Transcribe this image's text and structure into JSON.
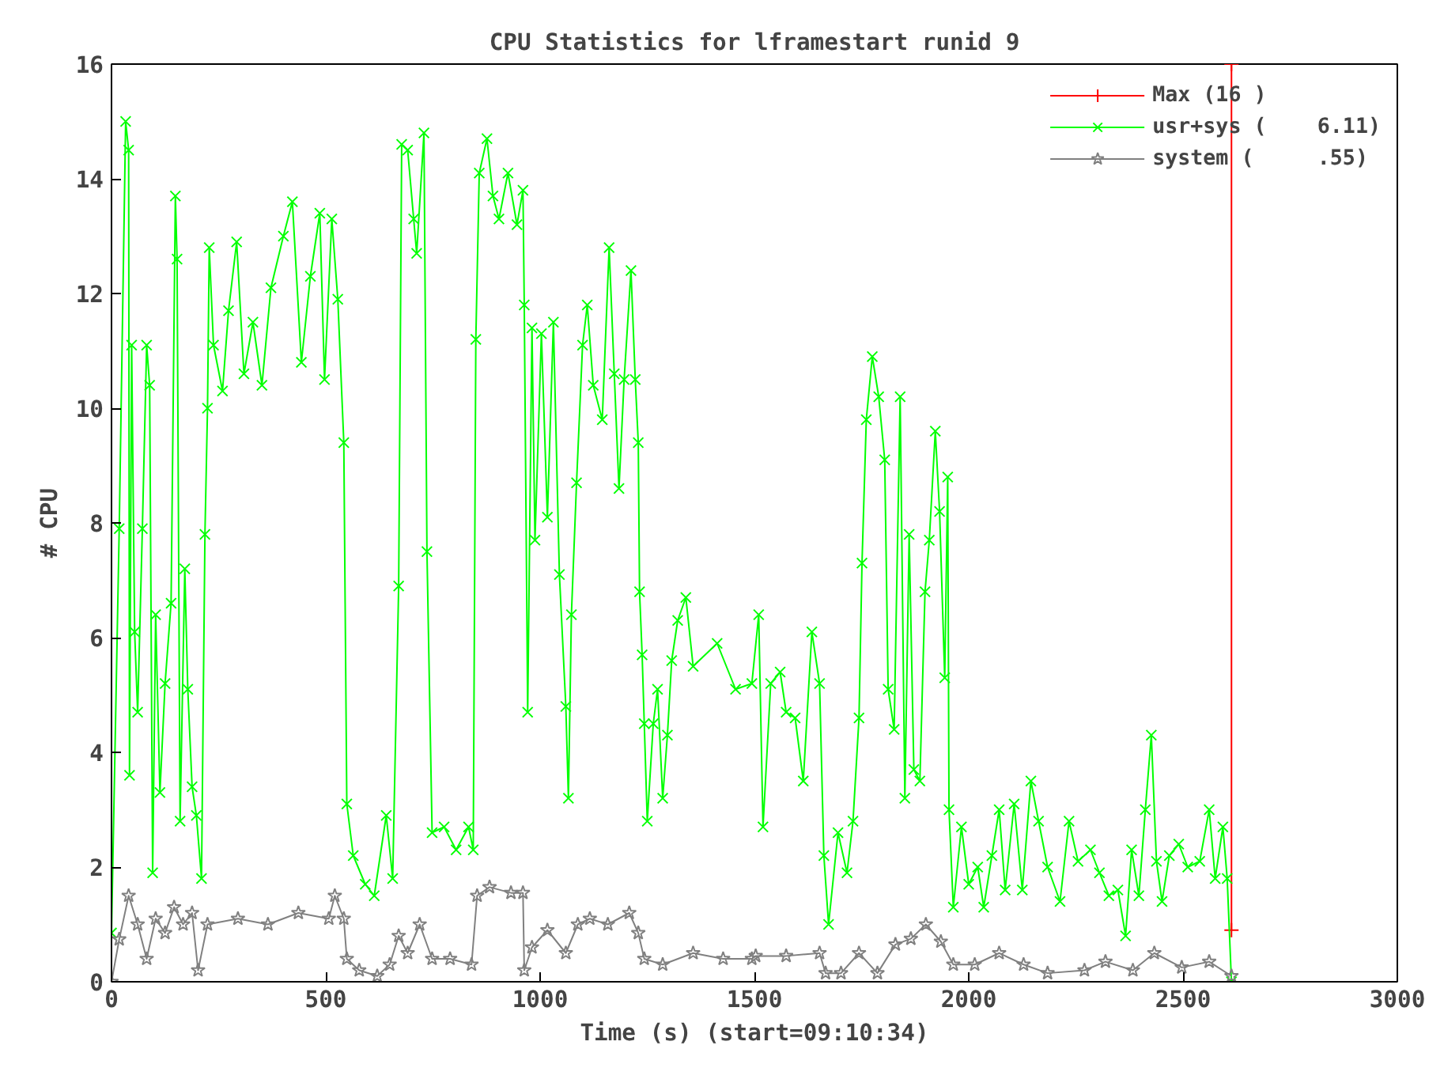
{
  "chart_data": {
    "type": "line",
    "title": "CPU Statistics for lframestart runid 9",
    "xlabel": "Time (s) (start=09:10:34)",
    "ylabel": "# CPU",
    "xlim": [
      0,
      3000
    ],
    "xticks": [
      0,
      500,
      1000,
      1500,
      2000,
      2500,
      3000
    ],
    "ylim": [
      0,
      16
    ],
    "yticks": [
      0,
      2,
      4,
      6,
      8,
      10,
      12,
      14,
      16
    ],
    "grid": false,
    "legend": "top right",
    "line_style": "solid",
    "series": [
      {
        "name": "Max (16 )",
        "color": "#ff0000",
        "marker": "cross",
        "x": [
          2613,
          2613
        ],
        "values": [
          16,
          0.9
        ]
      },
      {
        "name": "usr+sys (    6.11)",
        "color": "#00ff00",
        "marker": "x",
        "x": [
          0,
          18,
          33,
          40,
          42,
          47,
          54,
          61,
          72,
          82,
          89,
          96,
          103,
          113,
          125,
          139,
          149,
          153,
          160,
          171,
          178,
          188,
          198,
          210,
          218,
          224,
          228,
          238,
          259,
          273,
          292,
          309,
          330,
          351,
          372,
          401,
          422,
          443,
          464,
          486,
          497,
          514,
          528,
          542,
          549,
          564,
          592,
          613,
          641,
          656,
          670,
          677,
          691,
          705,
          712,
          729,
          736,
          748,
          776,
          804,
          833,
          844,
          850,
          858,
          876,
          890,
          904,
          925,
          946,
          960,
          963,
          971,
          981,
          988,
          1003,
          1017,
          1031,
          1045,
          1060,
          1066,
          1073,
          1085,
          1099,
          1110,
          1124,
          1145,
          1161,
          1173,
          1184,
          1196,
          1212,
          1222,
          1229,
          1232,
          1238,
          1243,
          1250,
          1264,
          1274,
          1286,
          1297,
          1307,
          1321,
          1340,
          1357,
          1413,
          1456,
          1494,
          1510,
          1520,
          1538,
          1560,
          1574,
          1595,
          1614,
          1634,
          1652,
          1662,
          1673,
          1695,
          1716,
          1730,
          1744,
          1751,
          1761,
          1775,
          1790,
          1804,
          1812,
          1826,
          1840,
          1851,
          1861,
          1872,
          1886,
          1898,
          1908,
          1922,
          1932,
          1944,
          1951,
          1954,
          1964,
          1983,
          2000,
          2021,
          2035,
          2054,
          2071,
          2085,
          2106,
          2125,
          2145,
          2163,
          2184,
          2213,
          2234,
          2255,
          2284,
          2305,
          2327,
          2348,
          2366,
          2380,
          2397,
          2412,
          2426,
          2438,
          2451,
          2468,
          2490,
          2511,
          2539,
          2561,
          2575,
          2593,
          2603,
          2613
        ],
        "values": [
          0.85,
          7.9,
          15.0,
          14.5,
          3.6,
          11.1,
          6.1,
          4.7,
          7.9,
          11.1,
          10.4,
          1.9,
          6.4,
          3.3,
          5.2,
          6.6,
          13.7,
          12.6,
          2.8,
          7.2,
          5.1,
          3.4,
          2.9,
          1.8,
          7.8,
          10.0,
          12.8,
          11.1,
          10.3,
          11.7,
          12.9,
          10.6,
          11.5,
          10.4,
          12.1,
          13.0,
          13.6,
          10.8,
          12.3,
          13.4,
          10.5,
          13.3,
          11.9,
          9.4,
          3.1,
          2.2,
          1.7,
          1.5,
          2.9,
          1.8,
          6.9,
          14.6,
          14.5,
          13.3,
          12.7,
          14.8,
          7.5,
          2.6,
          2.7,
          2.3,
          2.7,
          2.3,
          11.2,
          14.1,
          14.7,
          13.7,
          13.3,
          14.1,
          13.2,
          13.8,
          11.8,
          4.7,
          11.4,
          7.7,
          11.3,
          8.1,
          11.5,
          7.1,
          4.8,
          3.2,
          6.4,
          8.7,
          11.1,
          11.8,
          10.4,
          9.8,
          12.8,
          10.6,
          8.6,
          10.5,
          12.4,
          10.5,
          9.4,
          6.8,
          5.7,
          4.5,
          2.8,
          4.5,
          5.1,
          3.2,
          4.3,
          5.6,
          6.3,
          6.7,
          5.5,
          5.9,
          5.1,
          5.2,
          6.4,
          2.7,
          5.2,
          5.4,
          4.7,
          4.6,
          3.5,
          6.1,
          5.2,
          2.2,
          1.0,
          2.6,
          1.9,
          2.8,
          4.6,
          7.3,
          9.8,
          10.9,
          10.2,
          9.1,
          5.1,
          4.4,
          10.2,
          3.2,
          7.8,
          3.7,
          3.5,
          6.8,
          7.7,
          9.6,
          8.2,
          5.3,
          8.8,
          3.0,
          1.3,
          2.7,
          1.7,
          2.0,
          1.3,
          2.2,
          3.0,
          1.6,
          3.1,
          1.6,
          3.5,
          2.8,
          2.0,
          1.4,
          2.8,
          2.1,
          2.3,
          1.9,
          1.5,
          1.6,
          0.8,
          2.3,
          1.5,
          3.0,
          4.3,
          2.1,
          1.4,
          2.2,
          2.4,
          2.0,
          2.1,
          3.0,
          1.8,
          2.7,
          1.8,
          0.0
        ]
      },
      {
        "name": "system (     .55)",
        "color": "#808080",
        "marker": "star",
        "x": [
          0,
          18,
          40,
          61,
          82,
          103,
          125,
          146,
          167,
          188,
          202,
          224,
          295,
          365,
          436,
          507,
          521,
          542,
          549,
          578,
          620,
          649,
          670,
          691,
          719,
          748,
          790,
          840,
          853,
          882,
          932,
          960,
          963,
          981,
          1017,
          1060,
          1088,
          1116,
          1158,
          1208,
          1229,
          1243,
          1286,
          1357,
          1427,
          1494,
          1503,
          1574,
          1652,
          1666,
          1702,
          1744,
          1787,
          1829,
          1865,
          1900,
          1935,
          1964,
          2014,
          2071,
          2128,
          2184,
          2270,
          2319,
          2383,
          2433,
          2497,
          2561,
          2613
        ],
        "values": [
          0,
          0.74,
          1.5,
          1.0,
          0.4,
          1.1,
          0.85,
          1.3,
          1.0,
          1.2,
          0.2,
          1.0,
          1.1,
          1.0,
          1.2,
          1.1,
          1.5,
          1.1,
          0.4,
          0.2,
          0.1,
          0.3,
          0.8,
          0.5,
          1.0,
          0.4,
          0.4,
          0.3,
          1.5,
          1.65,
          1.55,
          1.55,
          0.2,
          0.6,
          0.9,
          0.5,
          1.0,
          1.1,
          1.0,
          1.2,
          0.85,
          0.4,
          0.3,
          0.5,
          0.4,
          0.4,
          0.45,
          0.45,
          0.5,
          0.15,
          0.15,
          0.5,
          0.15,
          0.65,
          0.75,
          1.0,
          0.7,
          0.3,
          0.3,
          0.5,
          0.3,
          0.15,
          0.2,
          0.35,
          0.2,
          0.5,
          0.25,
          0.35,
          0.1
        ]
      }
    ]
  }
}
